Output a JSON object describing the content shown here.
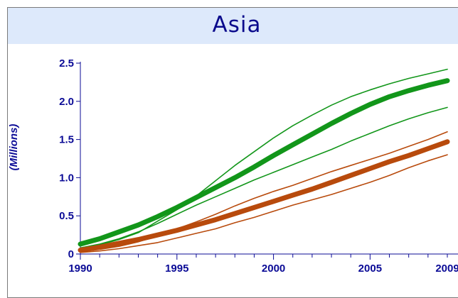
{
  "chart_data": {
    "type": "line",
    "title": "Asia",
    "xlabel": "",
    "ylabel": "(Millions)",
    "xlim": [
      1990,
      2009
    ],
    "ylim": [
      0,
      2.5
    ],
    "x_ticks": [
      "1990",
      "1995",
      "2000",
      "2005",
      "2009"
    ],
    "y_ticks": [
      "0",
      "0.5",
      "1.0",
      "1.5",
      "2.0",
      "2.5"
    ],
    "grid": false,
    "legend": "none",
    "x": [
      1990,
      1991,
      1992,
      1993,
      1994,
      1995,
      1996,
      1997,
      1998,
      1999,
      2000,
      2001,
      2002,
      2003,
      2004,
      2005,
      2006,
      2007,
      2008,
      2009
    ],
    "series": [
      {
        "color": "#12961a",
        "style": "thick",
        "values": [
          0.13,
          0.2,
          0.29,
          0.38,
          0.49,
          0.61,
          0.74,
          0.87,
          1.0,
          1.14,
          1.29,
          1.43,
          1.57,
          1.71,
          1.84,
          1.96,
          2.06,
          2.14,
          2.21,
          2.27
        ]
      },
      {
        "color": "#12961a",
        "style": "thin",
        "values": [
          0.08,
          0.12,
          0.19,
          0.28,
          0.43,
          0.58,
          0.76,
          0.96,
          1.16,
          1.34,
          1.52,
          1.68,
          1.82,
          1.95,
          2.06,
          2.15,
          2.23,
          2.3,
          2.36,
          2.42
        ]
      },
      {
        "color": "#12961a",
        "style": "thin",
        "values": [
          0.08,
          0.13,
          0.2,
          0.29,
          0.4,
          0.52,
          0.64,
          0.75,
          0.86,
          0.97,
          1.07,
          1.17,
          1.27,
          1.37,
          1.48,
          1.58,
          1.68,
          1.77,
          1.85,
          1.92
        ]
      },
      {
        "color": "#b84a0c",
        "style": "thick",
        "values": [
          0.05,
          0.09,
          0.14,
          0.19,
          0.25,
          0.31,
          0.38,
          0.45,
          0.53,
          0.61,
          0.69,
          0.77,
          0.85,
          0.94,
          1.03,
          1.12,
          1.21,
          1.29,
          1.38,
          1.47
        ]
      },
      {
        "color": "#b84a0c",
        "style": "thin",
        "values": [
          0.03,
          0.06,
          0.1,
          0.16,
          0.24,
          0.33,
          0.42,
          0.52,
          0.63,
          0.73,
          0.82,
          0.9,
          0.99,
          1.08,
          1.16,
          1.24,
          1.32,
          1.41,
          1.5,
          1.6
        ]
      },
      {
        "color": "#b84a0c",
        "style": "thin",
        "values": [
          0.02,
          0.04,
          0.07,
          0.11,
          0.15,
          0.21,
          0.27,
          0.33,
          0.41,
          0.48,
          0.56,
          0.64,
          0.71,
          0.78,
          0.86,
          0.94,
          1.03,
          1.13,
          1.22,
          1.3
        ]
      }
    ]
  }
}
